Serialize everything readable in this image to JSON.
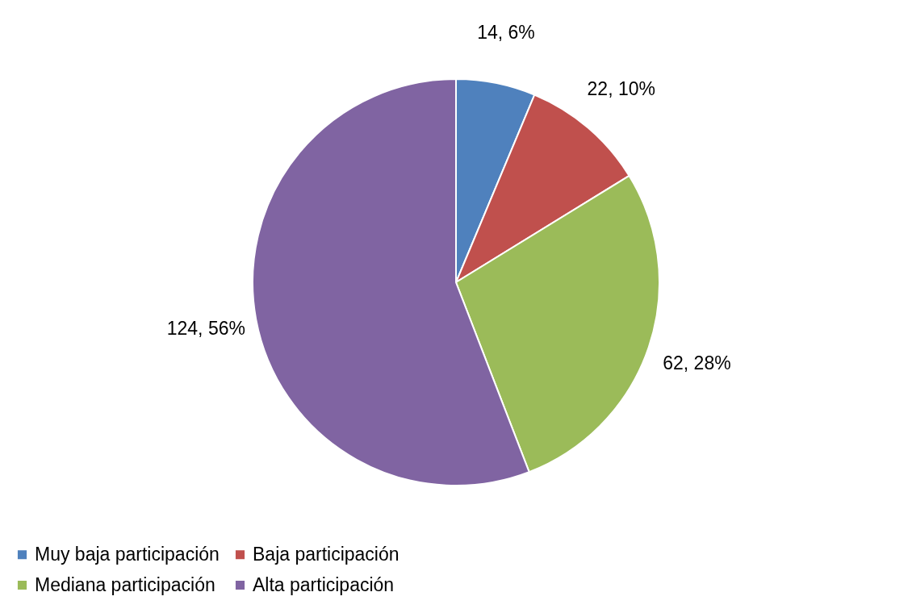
{
  "chart_data": {
    "type": "pie",
    "categories": [
      "Muy baja participación",
      "Baja participación",
      "Mediana participación",
      "Alta participación"
    ],
    "values": [
      14,
      22,
      62,
      124
    ],
    "value_labels": [
      "14, 6%",
      "22, 10%",
      "62, 28%",
      "124, 56%"
    ],
    "colors": [
      "#4f81bd",
      "#c0504d",
      "#9bbb59",
      "#8064a2"
    ],
    "legend": "bottom"
  }
}
